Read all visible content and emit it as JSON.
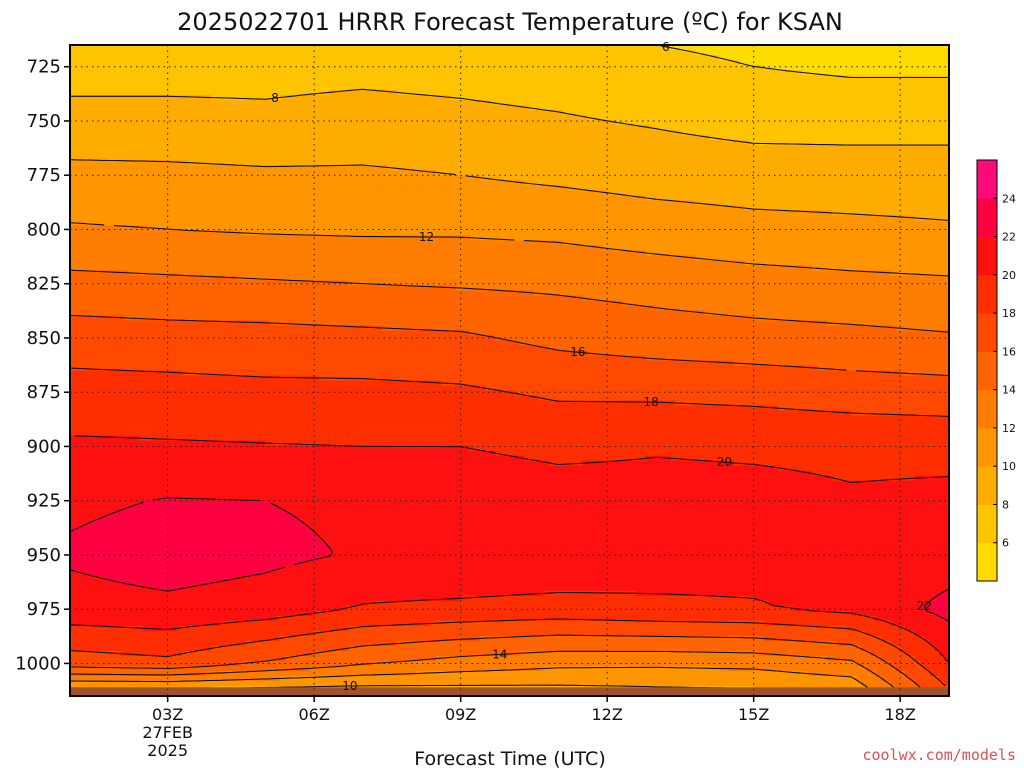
{
  "title": "2025022701 HRRR Forecast Temperature (ºC) for KSAN",
  "credit": "coolwx.com/models",
  "chart_data": {
    "type": "heatmap",
    "title": "2025022701 HRRR Forecast Temperature (ºC) for KSAN",
    "xlabel": "Forecast Time (UTC)",
    "ylabel": "",
    "x_ticks": [
      {
        "hour": 3,
        "label": "03Z",
        "date_line1": "27FEB",
        "date_line2": "2025"
      },
      {
        "hour": 6,
        "label": "06Z"
      },
      {
        "hour": 9,
        "label": "09Z"
      },
      {
        "hour": 12,
        "label": "12Z"
      },
      {
        "hour": 15,
        "label": "15Z"
      },
      {
        "hour": 18,
        "label": "18Z"
      }
    ],
    "y_ticks": [
      725,
      750,
      775,
      800,
      825,
      850,
      875,
      900,
      925,
      950,
      975,
      1000
    ],
    "y_axis": "pressure (hPa), inverted",
    "xlim": [
      1,
      19
    ],
    "ylim": [
      1015,
      715
    ],
    "grid": true,
    "colorbar": {
      "levels": [
        4,
        6,
        8,
        10,
        12,
        14,
        16,
        18,
        20,
        22,
        24,
        26
      ],
      "tick_labels": [
        "6",
        "8",
        "10",
        "12",
        "14",
        "16",
        "18",
        "20",
        "22",
        "24"
      ],
      "colors": [
        "#ffdc00",
        "#ffc400",
        "#ffac00",
        "#ff9500",
        "#ff7d00",
        "#ff6400",
        "#ff4800",
        "#ff2e00",
        "#ff1010",
        "#ff0040",
        "#ff0a78"
      ],
      "placement": "right"
    },
    "contour_interval": 2,
    "x_hours": [
      1,
      3,
      5,
      7,
      9,
      11,
      13,
      15,
      17,
      19
    ],
    "pressure_levels": [
      715,
      725,
      750,
      775,
      800,
      825,
      850,
      875,
      900,
      925,
      950,
      975,
      1000,
      1012
    ],
    "values": [
      [
        7.0,
        7.0,
        7.0,
        7.0,
        6.8,
        6.5,
        6.0,
        5.6,
        5.3,
        5.3
      ],
      [
        7.4,
        7.4,
        7.4,
        7.5,
        7.3,
        7.0,
        6.5,
        6.0,
        5.7,
        5.7
      ],
      [
        8.5,
        8.5,
        8.4,
        8.7,
        8.5,
        8.2,
        7.8,
        7.3,
        7.2,
        7.2
      ],
      [
        10.6,
        10.5,
        10.3,
        10.3,
        10.0,
        9.6,
        9.2,
        9.0,
        9.0,
        9.0
      ],
      [
        12.2,
        12.0,
        11.8,
        11.7,
        11.7,
        11.5,
        11.0,
        10.6,
        10.4,
        10.2
      ],
      [
        14.6,
        14.4,
        14.2,
        14.0,
        13.8,
        13.6,
        13.2,
        12.8,
        12.5,
        12.3
      ],
      [
        17.0,
        16.8,
        16.7,
        16.5,
        16.3,
        15.5,
        15.0,
        14.7,
        14.5,
        14.2
      ],
      [
        18.8,
        18.7,
        18.5,
        18.5,
        18.3,
        17.7,
        17.6,
        17.4,
        17.0,
        16.8
      ],
      [
        20.3,
        20.2,
        20.1,
        20.0,
        20.0,
        19.5,
        19.8,
        19.7,
        19.6,
        19.5
      ],
      [
        21.6,
        22.1,
        22.0,
        21.6,
        21.4,
        21.0,
        20.8,
        20.6,
        20.2,
        20.4
      ],
      [
        22.3,
        23.0,
        22.5,
        21.8,
        22.0,
        21.8,
        21.0,
        20.8,
        20.6,
        21.0
      ],
      [
        21.2,
        21.5,
        21.0,
        19.8,
        19.5,
        19.2,
        19.6,
        19.8,
        20.5,
        22.6
      ],
      [
        17.0,
        17.5,
        15.8,
        14.2,
        13.2,
        12.5,
        12.4,
        12.6,
        13.6,
        20.0
      ],
      [
        9.6,
        9.6,
        9.4,
        9.3,
        9.4,
        9.5,
        9.7,
        9.8,
        10.5,
        18.0
      ]
    ],
    "contours": [
      {
        "value": 6,
        "label": "6"
      },
      {
        "value": 8,
        "label": "8"
      },
      {
        "value": 10,
        "label": "10"
      },
      {
        "value": 12,
        "label": "12"
      },
      {
        "value": 14,
        "label": "14"
      },
      {
        "value": 16,
        "label": "16"
      },
      {
        "value": 18,
        "label": "18"
      },
      {
        "value": 20,
        "label": "20"
      },
      {
        "value": 22,
        "label": "22"
      }
    ],
    "surface": {
      "color": "#a0522d"
    }
  }
}
